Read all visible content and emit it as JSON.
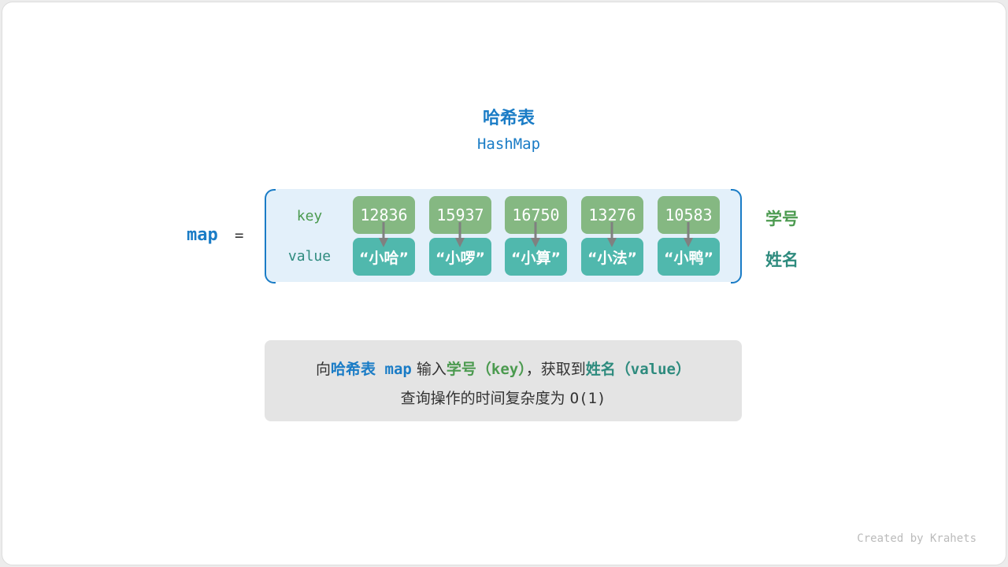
{
  "title": "哈希表",
  "subtitle": "HashMap",
  "map_name": "map",
  "equals": "=",
  "row_labels": {
    "key": "key",
    "value": "value"
  },
  "pairs": [
    {
      "key": "12836",
      "value": "“小哈”"
    },
    {
      "key": "15937",
      "value": "“小啰”"
    },
    {
      "key": "16750",
      "value": "“小算”"
    },
    {
      "key": "13276",
      "value": "“小法”"
    },
    {
      "key": "10583",
      "value": "“小鸭”"
    }
  ],
  "side_labels": {
    "key": "学号",
    "value": "姓名"
  },
  "note": {
    "line1": {
      "p1": "向",
      "p2": "哈希表",
      "p3": " map",
      "p4": " 输入",
      "p5": "学号",
      "p6": "（key）",
      "p7": "，获取到",
      "p8": "姓名",
      "p9": "（value）"
    },
    "line2": {
      "text": "查询操作的时间复杂度为 ",
      "complexity": "O(1)"
    }
  },
  "credit": "Created by Krahets",
  "colors": {
    "blue": "#1a7cc6",
    "key_box": "#85b882",
    "value_box": "#50b8ad",
    "key_text": "#4b9a4f",
    "value_text": "#2e8b7e",
    "arrow": "#808080"
  }
}
